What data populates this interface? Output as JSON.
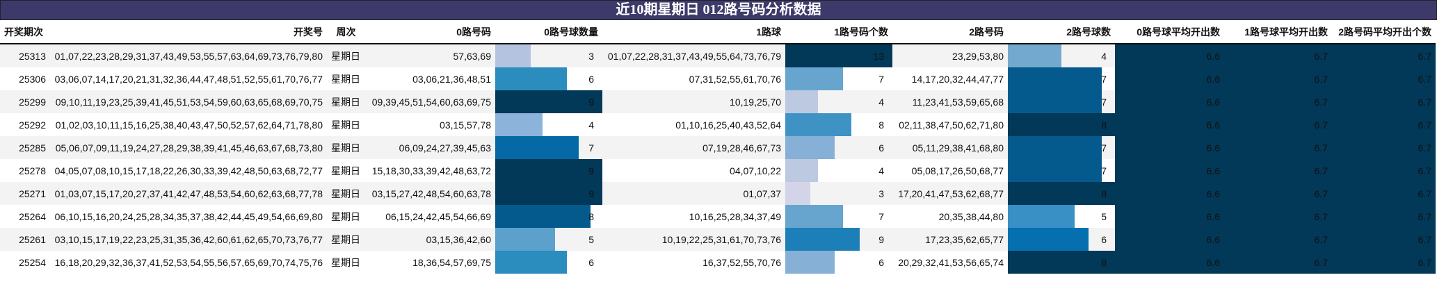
{
  "title": "近10期星期日 012路号码分析数据",
  "columns": [
    "开奖期次",
    "开奖号",
    "周次",
    "0路号码",
    "0路号球数量",
    "1路球",
    "1路号码个数",
    "2路号码",
    "2路号球数",
    "0路号球平均开出数",
    "1路号球平均开出数",
    "2路号码平均开出个数"
  ],
  "bar_max": {
    "c0": 9,
    "c1": 13,
    "c2": 8
  },
  "palette": {
    "3": "#d0d1e6",
    "4": "#bdc9e1",
    "5": "#74a9cf",
    "6": "#2b8cbe",
    "7": "#0570b0",
    "8": "#045a8d",
    "9": "#023858",
    "avg_bg": "#023858",
    "title_bg": "#3d3a6b"
  },
  "rows": [
    {
      "period": "25313",
      "numbers": "01,07,22,23,28,29,31,37,43,49,53,55,57,63,64,69,73,76,79,80",
      "weekday": "星期日",
      "r0": "57,63,69",
      "c0": 3,
      "r1": "01,07,22,28,31,37,43,49,55,64,73,76,79",
      "c1": 13,
      "r2": "23,29,53,80",
      "c2": 4,
      "avg0": "6.6",
      "avg1": "6.7",
      "avg2": "6.7",
      "c0_color": "#b4c4e0",
      "c1_color": "#023858",
      "c2_color": "#74a9cf"
    },
    {
      "period": "25306",
      "numbers": "03,06,07,14,17,20,21,31,32,36,44,47,48,51,52,55,61,70,76,77",
      "weekday": "星期日",
      "r0": "03,06,21,36,48,51",
      "c0": 6,
      "r1": "07,31,52,55,61,70,76",
      "c1": 7,
      "r2": "14,17,20,32,44,47,77",
      "c2": 7,
      "avg0": "6.6",
      "avg1": "6.7",
      "avg2": "6.7",
      "c0_color": "#2b8cbe",
      "c1_color": "#67a5ce",
      "c2_color": "#045a8d"
    },
    {
      "period": "25299",
      "numbers": "09,10,11,19,23,25,39,41,45,51,53,54,59,60,63,65,68,69,70,75",
      "weekday": "星期日",
      "r0": "09,39,45,51,54,60,63,69,75",
      "c0": 9,
      "r1": "10,19,25,70",
      "c1": 4,
      "r2": "11,23,41,53,59,65,68",
      "c2": 7,
      "avg0": "6.6",
      "avg1": "6.7",
      "avg2": "6.7",
      "c0_color": "#023858",
      "c1_color": "#bdc9e1",
      "c2_color": "#045a8d"
    },
    {
      "period": "25292",
      "numbers": "01,02,03,10,11,15,16,25,38,40,43,47,50,52,57,62,64,71,78,80",
      "weekday": "星期日",
      "r0": "03,15,57,78",
      "c0": 4,
      "r1": "01,10,16,25,40,43,52,64",
      "c1": 8,
      "r2": "02,11,38,47,50,62,71,80",
      "c2": 8,
      "avg0": "6.6",
      "avg1": "6.7",
      "avg2": "6.7",
      "c0_color": "#8cb3d9",
      "c1_color": "#3f93c4",
      "c2_color": "#023858"
    },
    {
      "period": "25285",
      "numbers": "05,06,07,09,11,19,24,27,28,29,38,39,41,45,46,63,67,68,73,80",
      "weekday": "星期日",
      "r0": "06,09,24,27,39,45,63",
      "c0": 7,
      "r1": "07,19,28,46,67,73",
      "c1": 6,
      "r2": "05,11,29,38,41,68,80",
      "c2": 7,
      "avg0": "6.6",
      "avg1": "6.7",
      "avg2": "6.7",
      "c0_color": "#0569a6",
      "c1_color": "#86b0d6",
      "c2_color": "#045a8d"
    },
    {
      "period": "25278",
      "numbers": "04,05,07,08,10,15,17,18,22,26,30,33,39,42,48,50,63,68,72,77",
      "weekday": "星期日",
      "r0": "15,18,30,33,39,42,48,63,72",
      "c0": 9,
      "r1": "04,07,10,22",
      "c1": 4,
      "r2": "05,08,17,26,50,68,77",
      "c2": 7,
      "avg0": "6.6",
      "avg1": "6.7",
      "avg2": "6.7",
      "c0_color": "#023858",
      "c1_color": "#bdc9e1",
      "c2_color": "#045a8d"
    },
    {
      "period": "25271",
      "numbers": "01,03,07,15,17,20,27,37,41,42,47,48,53,54,60,62,63,68,77,78",
      "weekday": "星期日",
      "r0": "03,15,27,42,48,54,60,63,78",
      "c0": 9,
      "r1": "01,07,37",
      "c1": 3,
      "r2": "17,20,41,47,53,62,68,77",
      "c2": 8,
      "avg0": "6.6",
      "avg1": "6.7",
      "avg2": "6.7",
      "c0_color": "#023858",
      "c1_color": "#d3d4e8",
      "c2_color": "#023858"
    },
    {
      "period": "25264",
      "numbers": "06,10,15,16,20,24,25,28,34,35,37,38,42,44,45,49,54,66,69,80",
      "weekday": "星期日",
      "r0": "06,15,24,42,45,54,66,69",
      "c0": 8,
      "r1": "10,16,25,28,34,37,49",
      "c1": 7,
      "r2": "20,35,38,44,80",
      "c2": 5,
      "avg0": "6.6",
      "avg1": "6.7",
      "avg2": "6.7",
      "c0_color": "#045a8d",
      "c1_color": "#67a5ce",
      "c2_color": "#3990c5"
    },
    {
      "period": "25261",
      "numbers": "03,10,15,17,19,22,23,25,31,35,36,42,60,61,62,65,70,73,76,77",
      "weekday": "星期日",
      "r0": "03,15,36,42,60",
      "c0": 5,
      "r1": "10,19,22,25,31,61,70,73,76",
      "c1": 9,
      "r2": "17,23,35,62,65,77",
      "c2": 6,
      "avg0": "6.6",
      "avg1": "6.7",
      "avg2": "6.7",
      "c0_color": "#5ba1cc",
      "c1_color": "#1c7fb8",
      "c2_color": "#056faf"
    },
    {
      "period": "25254",
      "numbers": "16,18,20,29,32,36,37,41,52,53,54,55,56,57,65,69,70,74,75,76",
      "weekday": "星期日",
      "r0": "18,36,54,57,69,75",
      "c0": 6,
      "r1": "16,37,52,55,70,76",
      "c1": 6,
      "r2": "20,29,32,41,53,56,65,74",
      "c2": 8,
      "avg0": "6.6",
      "avg1": "6.7",
      "avg2": "6.7",
      "c0_color": "#2b8cbe",
      "c1_color": "#86b0d6",
      "c2_color": "#023858"
    }
  ]
}
